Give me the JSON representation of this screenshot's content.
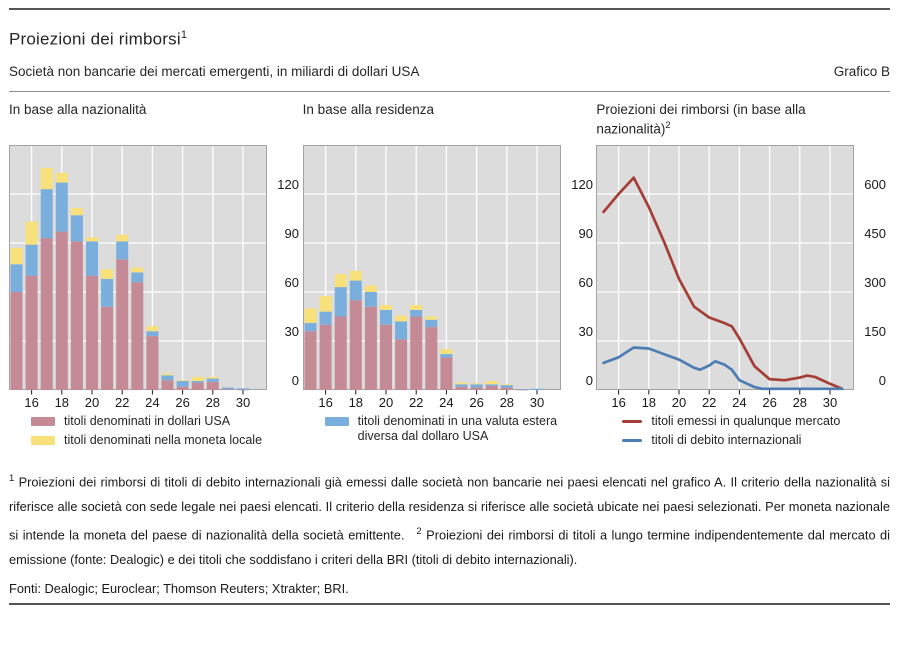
{
  "header": {
    "title": "Proiezioni dei rimborsi",
    "title_sup": "1",
    "subtitle": "Società non bancarie dei mercati emergenti, in miliardi di dollari USA",
    "graph_label": "Grafico B"
  },
  "colors": {
    "bar_usd_pink": "#c48a96",
    "bar_foreign_blue": "#7aaedd",
    "bar_local_yellow": "#f8e17a",
    "line_red": "#a43e36",
    "line_blue": "#4d7db3",
    "plot_background": "#dcdcdc",
    "gridline": "#ffffff",
    "plot_frame": "#a3a3a3"
  },
  "chart_data": [
    {
      "id": "nazionalita",
      "type": "bar",
      "stacked": true,
      "title": "In base alla nazionalità",
      "title_sup": "",
      "x": [
        15,
        16,
        17,
        18,
        19,
        20,
        21,
        22,
        23,
        24,
        25,
        26,
        27,
        28,
        29,
        30
      ],
      "series": [
        {
          "name": "titoli denominati in dollari USA",
          "color": "#c48a96",
          "values": [
            60,
            70,
            93,
            97,
            91,
            70,
            51,
            80,
            66,
            33,
            6,
            2,
            4.5,
            5,
            0.5,
            0.2
          ]
        },
        {
          "name": "titoli denominati in una valuta estera diversa dal dollaro USA",
          "color": "#7aaedd",
          "values": [
            17,
            19,
            30,
            30,
            16,
            21,
            17,
            11,
            6,
            3,
            3,
            3.5,
            1,
            2,
            1,
            0.8
          ]
        },
        {
          "name": "titoli denominati nella moneta locale",
          "color": "#f8e17a",
          "values": [
            10,
            14,
            13,
            6,
            4.5,
            2.5,
            6,
            4,
            3,
            3,
            1,
            0.5,
            2.5,
            1,
            0,
            0
          ]
        }
      ],
      "ylim": [
        0,
        150
      ],
      "yticks": [
        0,
        30,
        60,
        90,
        120
      ],
      "xticks": [
        16,
        18,
        20,
        22,
        24,
        26,
        28,
        30
      ],
      "grid": true,
      "legend": [
        {
          "swatch": "rect",
          "color": "#c48a96",
          "label": "titoli denominati in dollari USA"
        },
        {
          "swatch": "rect",
          "color": "#f8e17a",
          "label": "titoli denominati nella moneta locale"
        }
      ]
    },
    {
      "id": "residenza",
      "type": "bar",
      "stacked": true,
      "title": "In base alla residenza",
      "title_sup": "",
      "x": [
        15,
        16,
        17,
        18,
        19,
        20,
        21,
        22,
        23,
        24,
        25,
        26,
        27,
        28,
        29,
        30
      ],
      "series": [
        {
          "name": "titoli denominati in dollari USA",
          "color": "#c48a96",
          "values": [
            36,
            40,
            45,
            55,
            51,
            40,
            31,
            45,
            38.5,
            20,
            2,
            1.5,
            2.5,
            1.5,
            0.2,
            0
          ]
        },
        {
          "name": "titoli denominati in una valuta estera diversa dal dollaro USA",
          "color": "#7aaedd",
          "values": [
            5,
            8,
            18,
            12,
            9,
            9,
            11,
            4,
            4.5,
            2,
            1.5,
            2,
            1,
            1.5,
            0.1,
            0.8
          ]
        },
        {
          "name": "titoli denominati nella moneta locale",
          "color": "#f8e17a",
          "values": [
            9,
            9.5,
            8,
            6,
            4,
            3,
            3.5,
            3,
            2,
            3,
            1,
            0.5,
            2,
            0.5,
            0,
            0
          ]
        }
      ],
      "ylim": [
        0,
        150
      ],
      "yticks": [
        0,
        30,
        60,
        90,
        120
      ],
      "xticks": [
        16,
        18,
        20,
        22,
        24,
        26,
        28,
        30
      ],
      "grid": true,
      "legend": [
        {
          "swatch": "rect",
          "color": "#7aaedd",
          "label": "titoli denominati in una valuta estera diversa dal dollaro USA",
          "label_max_width": 228
        }
      ]
    },
    {
      "id": "proiezioni",
      "type": "line",
      "title": "Proiezioni dei rimborsi (in base alla nazionalità)",
      "title_sup": "2",
      "series": [
        {
          "name": "titoli emessi in qualunque mercato",
          "color": "#a43e36",
          "x": [
            15,
            16,
            17,
            18,
            19,
            20,
            21,
            22,
            23,
            23.5,
            24,
            25,
            26,
            27,
            28,
            28.5,
            29,
            30,
            30.8
          ],
          "values": [
            545,
            600,
            650,
            560,
            455,
            340,
            255,
            222,
            205,
            195,
            158,
            73,
            33,
            30,
            38,
            44,
            40,
            19,
            3
          ]
        },
        {
          "name": "titoli di debito internazionali",
          "color": "#4d7db3",
          "x": [
            15,
            16,
            17,
            18,
            19,
            20,
            21,
            21.4,
            22,
            22.4,
            23,
            23.5,
            24,
            25,
            25.5,
            26,
            27,
            28,
            29,
            30,
            30.8
          ],
          "values": [
            83,
            100,
            130,
            127,
            110,
            93,
            68,
            62,
            75,
            88,
            78,
            62,
            30,
            9,
            3,
            2,
            2,
            2,
            2,
            1,
            0
          ]
        }
      ],
      "ylim": [
        0,
        750
      ],
      "yticks": [
        0,
        150,
        300,
        450,
        600
      ],
      "xticks": [
        16,
        18,
        20,
        22,
        24,
        26,
        28,
        30
      ],
      "grid": true,
      "legend": [
        {
          "swatch": "line",
          "color": "#a43e36",
          "label": "titoli emessi in qualunque mercato"
        },
        {
          "swatch": "line",
          "color": "#4d7db3",
          "label": "titoli di debito internazionali"
        }
      ]
    }
  ],
  "footnotes": [
    {
      "marker": "1",
      "text": "Proiezioni dei rimborsi di titoli di debito internazionali già emessi dalle società non bancarie nei paesi elencati nel grafico A. Il criterio della nazionalità si riferisce alle società con sede legale nei paesi elencati. Il criterio della residenza si riferisce alle società ubicate nei paesi selezionati. Per moneta nazionale si intende la moneta del paese di nazionalità della società emittente."
    },
    {
      "marker": "2",
      "text": "Proiezioni dei rimborsi di titoli a lungo termine indipendentemente dal mercato di emissione (fonte: Dealogic) e dei titoli che soddisfano i criteri della BRI (titoli di debito internazionali)."
    }
  ],
  "sources": "Fonti: Dealogic; Euroclear; Thomson Reuters; Xtrakter; BRI."
}
